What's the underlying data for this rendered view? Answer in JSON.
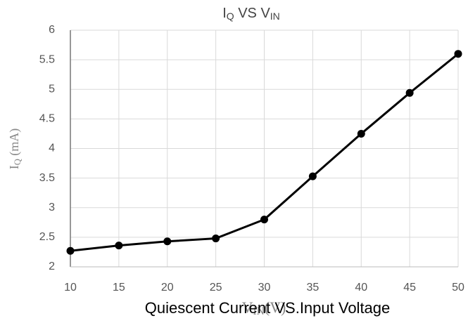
{
  "chart_data": {
    "type": "line",
    "title": [
      {
        "text": "I"
      },
      {
        "text": "Q",
        "sub": true
      },
      {
        "text": " VS  V"
      },
      {
        "text": "IN",
        "sub": true
      }
    ],
    "ylabel": [
      {
        "text": "I"
      },
      {
        "text": "Q",
        "sub": true
      },
      {
        "text": " (mA)"
      }
    ],
    "xlabel": [
      {
        "text": "V"
      },
      {
        "text": "IN",
        "sub": true
      },
      {
        "text": "(V)"
      }
    ],
    "caption": "Quiescent Current VS.Input Voltage",
    "x": [
      10,
      15,
      20,
      25,
      30,
      35,
      40,
      45,
      50
    ],
    "series": [
      {
        "name": "IQ",
        "color": "#000000",
        "values": [
          2.27,
          2.36,
          2.43,
          2.48,
          2.8,
          3.53,
          4.25,
          4.94,
          5.6
        ]
      }
    ],
    "xlim": [
      10,
      50
    ],
    "xticks": [
      10,
      15,
      20,
      25,
      30,
      35,
      40,
      45,
      50
    ],
    "ylim": [
      2,
      6
    ],
    "yticks": [
      2,
      2.5,
      3,
      3.5,
      4,
      4.5,
      5,
      5.5,
      6
    ],
    "grid": true
  }
}
